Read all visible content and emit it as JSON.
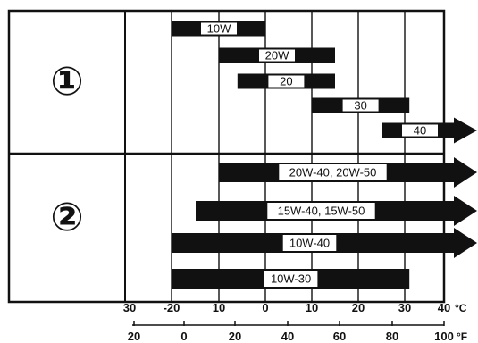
{
  "chart_data": {
    "type": "bar",
    "description_axis": "ambient temperature range per oil viscosity grade",
    "celsius_ticks": [
      "30",
      "-20",
      "10",
      "0",
      "10",
      "20",
      "30",
      "40"
    ],
    "celsius_unit": "°C",
    "fahrenheit_ticks": [
      "20",
      "0",
      "20",
      "40",
      "60",
      "80",
      "100"
    ],
    "fahrenheit_unit": "°F",
    "groups": [
      {
        "marker": "①",
        "series": [
          {
            "name": "10W",
            "from_c": -20,
            "to_c": 0,
            "arrow": false
          },
          {
            "name": "20W",
            "from_c": -10,
            "to_c": 15,
            "arrow": false
          },
          {
            "name": "20",
            "from_c": -6,
            "to_c": 15,
            "arrow": false
          },
          {
            "name": "30",
            "from_c": 10,
            "to_c": 31,
            "arrow": false
          },
          {
            "name": "40",
            "from_c": 25,
            "to_c": 40,
            "arrow": true
          }
        ]
      },
      {
        "marker": "②",
        "series": [
          {
            "name": "20W-40, 20W-50",
            "from_c": -10,
            "to_c": 40,
            "arrow": true
          },
          {
            "name": "15W-40, 15W-50",
            "from_c": -15,
            "to_c": 40,
            "arrow": true
          },
          {
            "name": "10W-40",
            "from_c": -20,
            "to_c": 40,
            "arrow": true
          },
          {
            "name": "10W-30",
            "from_c": -20,
            "to_c": 31,
            "arrow": false
          }
        ]
      }
    ],
    "colors": {
      "bar": "#111111",
      "label_bg": "#ffffff",
      "grid": "#111111"
    }
  }
}
